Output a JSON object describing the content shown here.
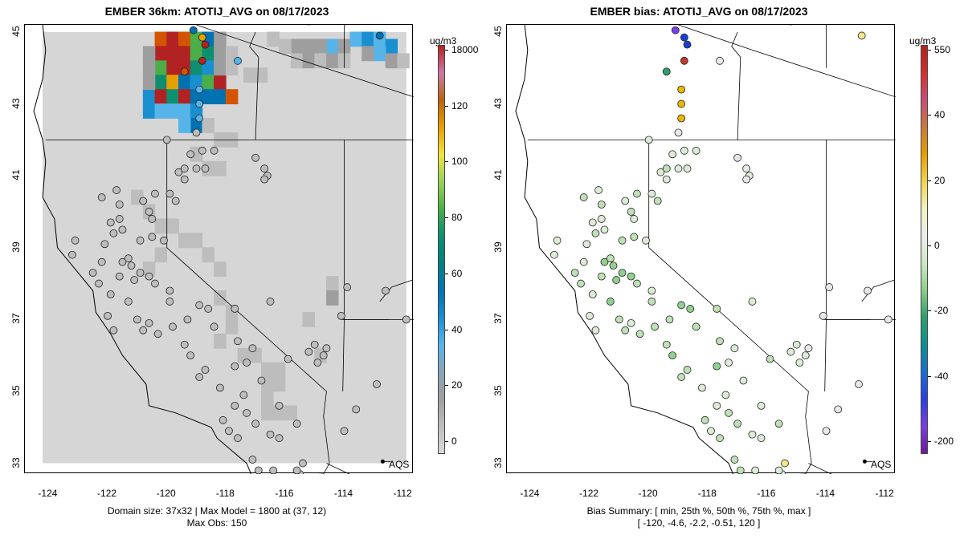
{
  "left": {
    "title": "EMBER 36km: ATOTIJ_AVG on 08/17/2023",
    "footer_line1": "Domain size: 37x32 | Max Model = 1800 at (37, 12)",
    "footer_line2": "Max Obs: 150",
    "colorbar": {
      "unit": "ug/m3",
      "labels": [
        "18000",
        "120",
        "100",
        "80",
        "60",
        "40",
        "20",
        "0"
      ],
      "colors": [
        "#b22222",
        "#cc79a7",
        "#b8650c",
        "#e69f00",
        "#f0e442",
        "#9ad25a",
        "#4cae48",
        "#0e8f6f",
        "#008080",
        "#0072b2",
        "#1a8fd0",
        "#56b4e9",
        "#8aa4b8",
        "#9e9e9e",
        "#bdbdbd",
        "#d9d9d9"
      ]
    }
  },
  "right": {
    "title": "EMBER bias: ATOTIJ_AVG on 08/17/2023",
    "footer_line1": "Bias Summary: [ min, 25th %, 50th %, 75th %, max ]",
    "footer_line2": "[ -120,   -4.6,   -2.2,   -0.51,   120 ]",
    "colorbar": {
      "unit": "ug/m3",
      "labels": [
        "550",
        "40",
        "20",
        "0",
        "-20",
        "-40",
        "-200"
      ],
      "colors": [
        "#b22222",
        "#d32f2f",
        "#c94d7a",
        "#c97a3a",
        "#e69f00",
        "#f0d34e",
        "#f2f2c0",
        "#ececec",
        "#cfe8c6",
        "#8ccd8a",
        "#2e9e6e",
        "#0e8f8f",
        "#1a6fd0",
        "#2c3fe0",
        "#7a3fe0",
        "#6a1b9a"
      ]
    }
  },
  "axes": {
    "x_ticks": [
      "-124",
      "-122",
      "-120",
      "-118",
      "-116",
      "-114",
      "-112"
    ],
    "y_ticks": [
      "45",
      "43",
      "41",
      "39",
      "37",
      "35",
      "33"
    ],
    "legend_label": "AQS"
  }
}
